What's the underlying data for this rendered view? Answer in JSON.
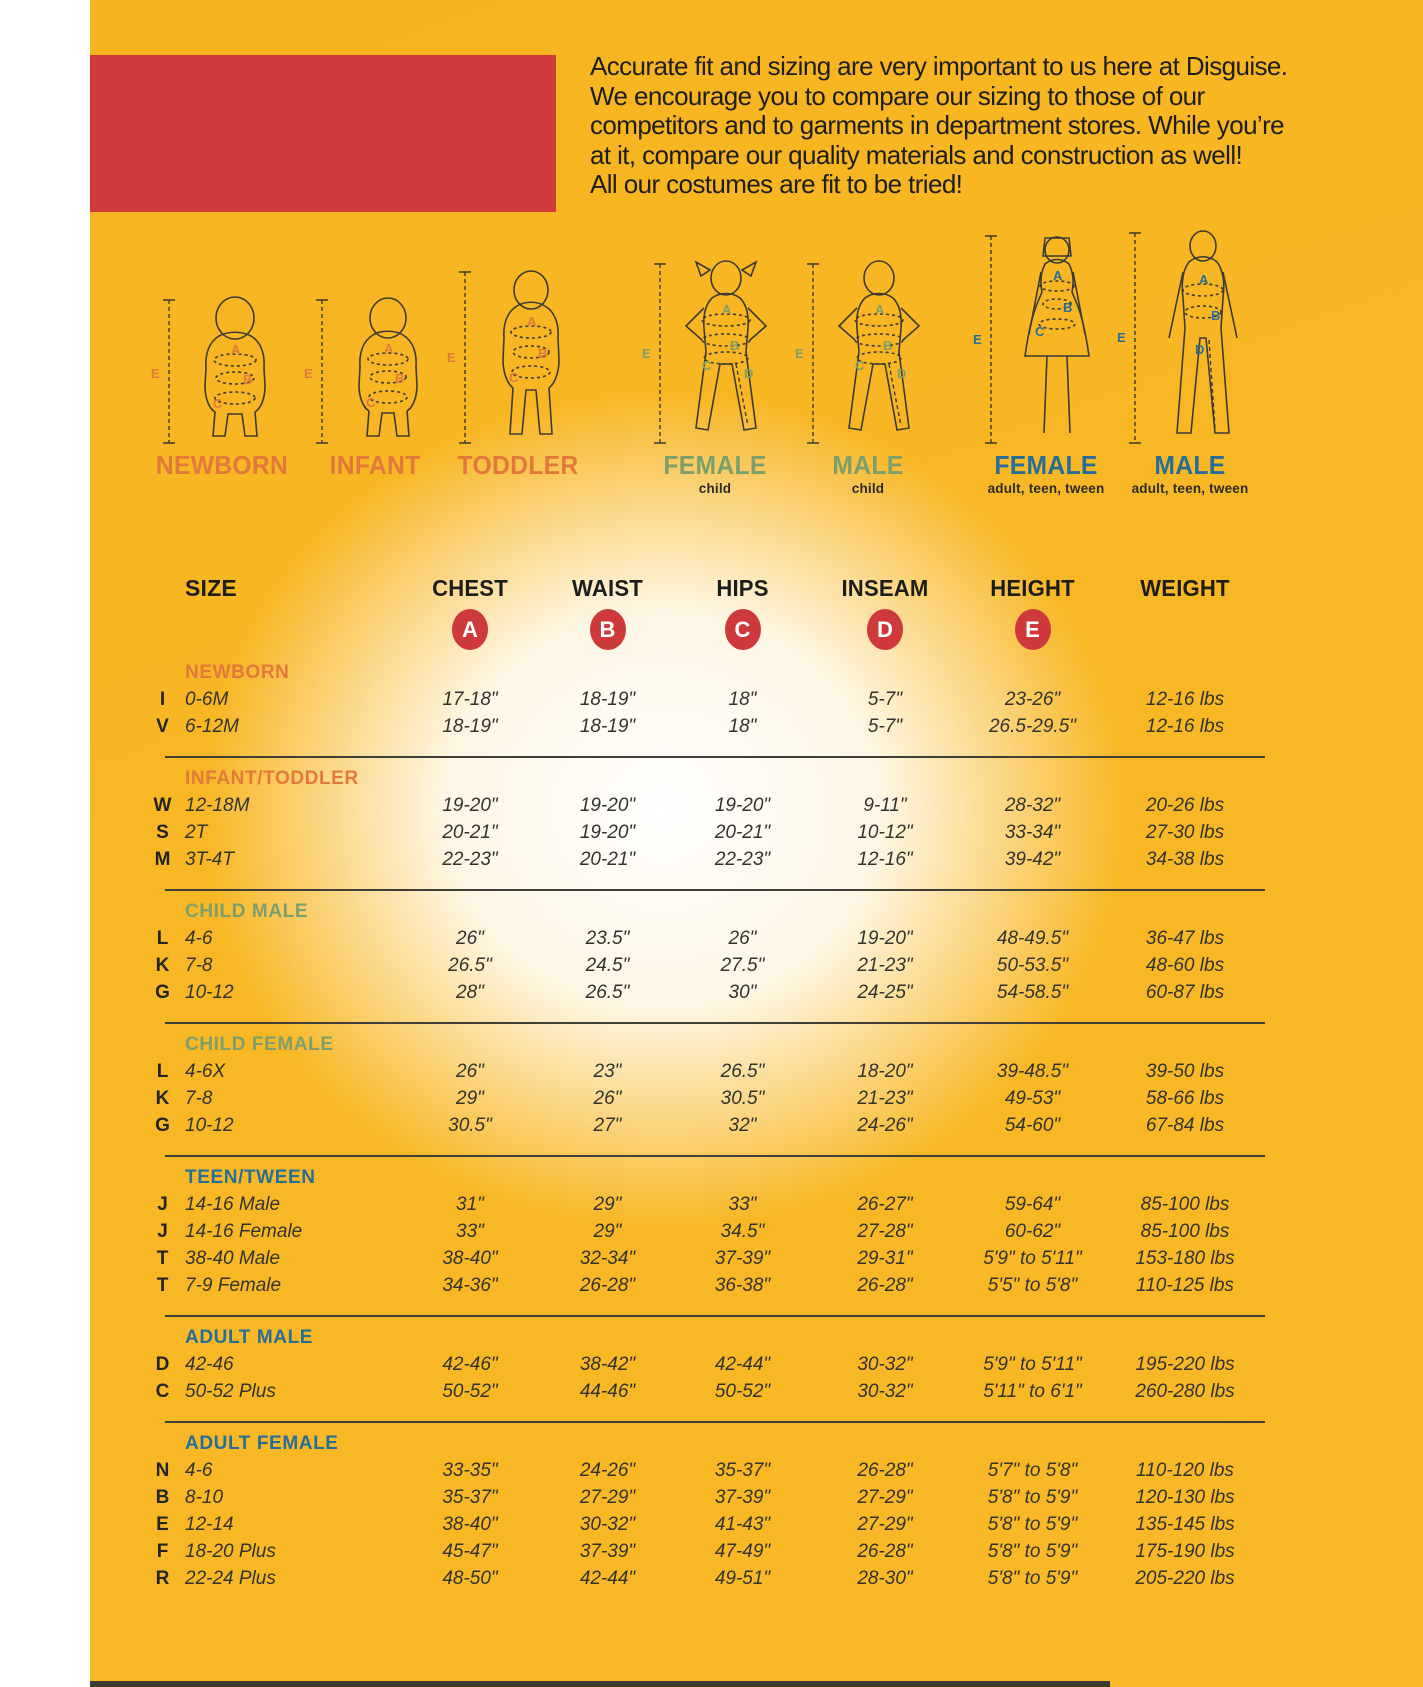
{
  "intro": {
    "lines": [
      "Accurate fit and sizing are very important to us here at Disguise.",
      "We encourage you to compare our sizing to those of our",
      "competitors and to garments in department stores. While you’re",
      "at it, compare our quality materials and construction as well!",
      "All our costumes are fit to be tried!"
    ]
  },
  "colors": {
    "background": "#F8B826",
    "banner_red": "#CF3B3D",
    "badge_red": "#CE3A3C",
    "orange": "#E2793B",
    "green": "#7C9F6C",
    "blue": "#266E97",
    "text_dark": "#2B2B26"
  },
  "letters": {
    "A": "A",
    "B": "B",
    "C": "C",
    "D": "D",
    "E": "E"
  },
  "figures": [
    {
      "label": "NEWBORN",
      "sublabel": "",
      "color": "orange"
    },
    {
      "label": "INFANT",
      "sublabel": "",
      "color": "orange"
    },
    {
      "label": "TODDLER",
      "sublabel": "",
      "color": "orange"
    },
    {
      "label": "FEMALE",
      "sublabel": "child",
      "color": "green"
    },
    {
      "label": "MALE",
      "sublabel": "child",
      "color": "green"
    },
    {
      "label": "FEMALE",
      "sublabel": "adult, teen, tween",
      "color": "blue"
    },
    {
      "label": "MALE",
      "sublabel": "adult, teen, tween",
      "color": "blue"
    }
  ],
  "table": {
    "columns": [
      "SIZE",
      "CHEST",
      "WAIST",
      "HIPS",
      "INSEAM",
      "HEIGHT",
      "WEIGHT"
    ],
    "badges": [
      "A",
      "B",
      "C",
      "D",
      "E"
    ],
    "sections": [
      {
        "name": "NEWBORN",
        "color": "orange",
        "rows": [
          {
            "code": "I",
            "size": "0-6M",
            "chest": "17-18\"",
            "waist": "18-19\"",
            "hips": "18\"",
            "inseam": "5-7\"",
            "height": "23-26\"",
            "weight": "12-16 lbs"
          },
          {
            "code": "V",
            "size": "6-12M",
            "chest": "18-19\"",
            "waist": "18-19\"",
            "hips": "18\"",
            "inseam": "5-7\"",
            "height": "26.5-29.5\"",
            "weight": "12-16 lbs"
          }
        ]
      },
      {
        "name": "INFANT/TODDLER",
        "color": "orange",
        "rows": [
          {
            "code": "W",
            "size": "12-18M",
            "chest": "19-20\"",
            "waist": "19-20\"",
            "hips": "19-20\"",
            "inseam": "9-11\"",
            "height": "28-32\"",
            "weight": "20-26 lbs"
          },
          {
            "code": "S",
            "size": "2T",
            "chest": "20-21\"",
            "waist": "19-20\"",
            "hips": "20-21\"",
            "inseam": "10-12\"",
            "height": "33-34\"",
            "weight": "27-30 lbs"
          },
          {
            "code": "M",
            "size": "3T-4T",
            "chest": "22-23\"",
            "waist": "20-21\"",
            "hips": "22-23\"",
            "inseam": "12-16\"",
            "height": "39-42\"",
            "weight": "34-38 lbs"
          }
        ]
      },
      {
        "name": "CHILD MALE",
        "color": "green",
        "rows": [
          {
            "code": "L",
            "size": "4-6",
            "chest": "26\"",
            "waist": "23.5\"",
            "hips": "26\"",
            "inseam": "19-20\"",
            "height": "48-49.5\"",
            "weight": "36-47 lbs"
          },
          {
            "code": "K",
            "size": "7-8",
            "chest": "26.5\"",
            "waist": "24.5\"",
            "hips": "27.5\"",
            "inseam": "21-23\"",
            "height": "50-53.5\"",
            "weight": "48-60 lbs"
          },
          {
            "code": "G",
            "size": "10-12",
            "chest": "28\"",
            "waist": "26.5\"",
            "hips": "30\"",
            "inseam": "24-25\"",
            "height": "54-58.5\"",
            "weight": "60-87 lbs"
          }
        ]
      },
      {
        "name": "CHILD FEMALE",
        "color": "green",
        "rows": [
          {
            "code": "L",
            "size": "4-6X",
            "chest": "26\"",
            "waist": "23\"",
            "hips": "26.5\"",
            "inseam": "18-20\"",
            "height": "39-48.5\"",
            "weight": "39-50 lbs"
          },
          {
            "code": "K",
            "size": "7-8",
            "chest": "29\"",
            "waist": "26\"",
            "hips": "30.5\"",
            "inseam": "21-23\"",
            "height": "49-53\"",
            "weight": "58-66 lbs"
          },
          {
            "code": "G",
            "size": "10-12",
            "chest": "30.5\"",
            "waist": "27\"",
            "hips": "32\"",
            "inseam": "24-26\"",
            "height": "54-60\"",
            "weight": "67-84 lbs"
          }
        ]
      },
      {
        "name": "TEEN/TWEEN",
        "color": "blue",
        "rows": [
          {
            "code": "J",
            "size": "14-16 Male",
            "chest": "31\"",
            "waist": "29\"",
            "hips": "33\"",
            "inseam": "26-27\"",
            "height": "59-64\"",
            "weight": "85-100 lbs"
          },
          {
            "code": "J",
            "size": "14-16 Female",
            "chest": "33\"",
            "waist": "29\"",
            "hips": "34.5\"",
            "inseam": "27-28\"",
            "height": "60-62\"",
            "weight": "85-100 lbs"
          },
          {
            "code": "T",
            "size": "38-40 Male",
            "chest": "38-40\"",
            "waist": "32-34\"",
            "hips": "37-39\"",
            "inseam": "29-31\"",
            "height": "5'9\" to 5'11\"",
            "weight": "153-180 lbs"
          },
          {
            "code": "T",
            "size": "7-9 Female",
            "chest": "34-36\"",
            "waist": "26-28\"",
            "hips": "36-38\"",
            "inseam": "26-28\"",
            "height": "5'5\" to 5'8\"",
            "weight": "110-125 lbs"
          }
        ]
      },
      {
        "name": "ADULT MALE",
        "color": "blue",
        "rows": [
          {
            "code": "D",
            "size": "42-46",
            "chest": "42-46\"",
            "waist": "38-42\"",
            "hips": "42-44\"",
            "inseam": "30-32\"",
            "height": "5'9\" to 5'11\"",
            "weight": "195-220 lbs"
          },
          {
            "code": "C",
            "size": "50-52 Plus",
            "chest": "50-52\"",
            "waist": "44-46\"",
            "hips": "50-52\"",
            "inseam": "30-32\"",
            "height": "5'11\" to 6'1\"",
            "weight": "260-280 lbs"
          }
        ]
      },
      {
        "name": "ADULT FEMALE",
        "color": "blue",
        "rows": [
          {
            "code": "N",
            "size": "4-6",
            "chest": "33-35\"",
            "waist": "24-26\"",
            "hips": "35-37\"",
            "inseam": "26-28\"",
            "height": "5'7\" to 5'8\"",
            "weight": "110-120 lbs"
          },
          {
            "code": "B",
            "size": "8-10",
            "chest": "35-37\"",
            "waist": "27-29\"",
            "hips": "37-39\"",
            "inseam": "27-29\"",
            "height": "5'8\" to 5'9\"",
            "weight": "120-130 lbs"
          },
          {
            "code": "E",
            "size": "12-14",
            "chest": "38-40\"",
            "waist": "30-32\"",
            "hips": "41-43\"",
            "inseam": "27-29\"",
            "height": "5'8\" to 5'9\"",
            "weight": "135-145 lbs"
          },
          {
            "code": "F",
            "size": "18-20 Plus",
            "chest": "45-47\"",
            "waist": "37-39\"",
            "hips": "47-49\"",
            "inseam": "26-28\"",
            "height": "5'8\" to 5'9\"",
            "weight": "175-190 lbs"
          },
          {
            "code": "R",
            "size": "22-24 Plus",
            "chest": "48-50\"",
            "waist": "42-44\"",
            "hips": "49-51\"",
            "inseam": "28-30\"",
            "height": "5'8\" to 5'9\"",
            "weight": "205-220 lbs"
          }
        ]
      }
    ]
  }
}
